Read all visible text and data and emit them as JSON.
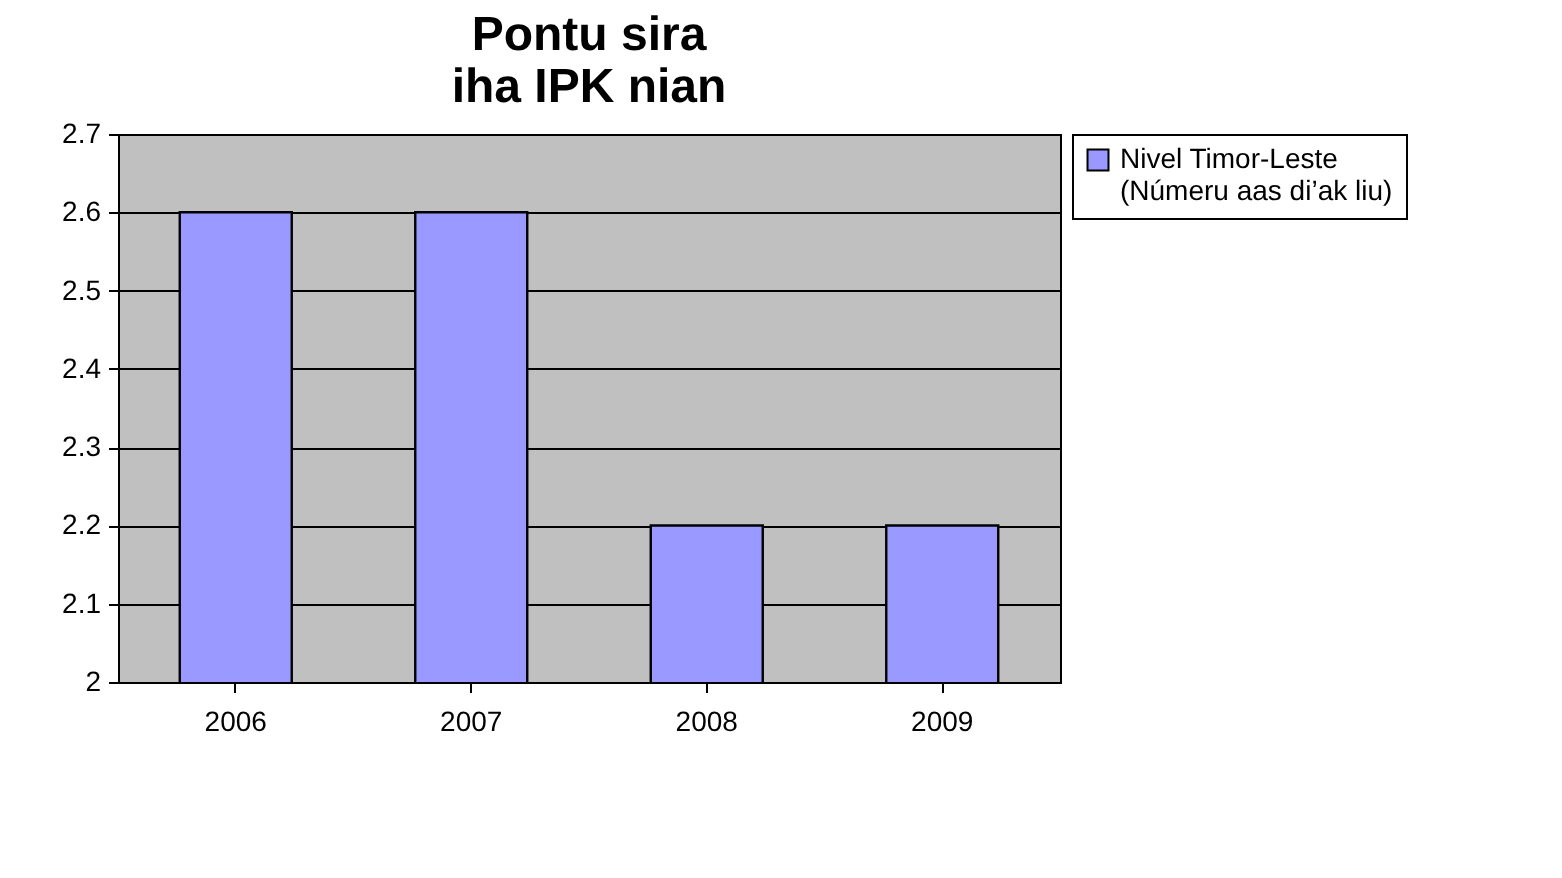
{
  "chart_data": {
    "type": "bar",
    "title": "Pontu sira\niha IPK nian",
    "categories": [
      "2006",
      "2007",
      "2008",
      "2009"
    ],
    "series": [
      {
        "name": "Nivel Timor-Leste\n(Númeru aas di’ak liu)",
        "color": "#9999ff",
        "values": [
          2.6,
          2.6,
          2.2,
          2.2
        ]
      }
    ],
    "ylim": [
      2,
      2.7
    ],
    "yticks": [
      2,
      2.1,
      2.2,
      2.3,
      2.4,
      2.5,
      2.6,
      2.7
    ],
    "grid": "y",
    "legend": "right"
  }
}
